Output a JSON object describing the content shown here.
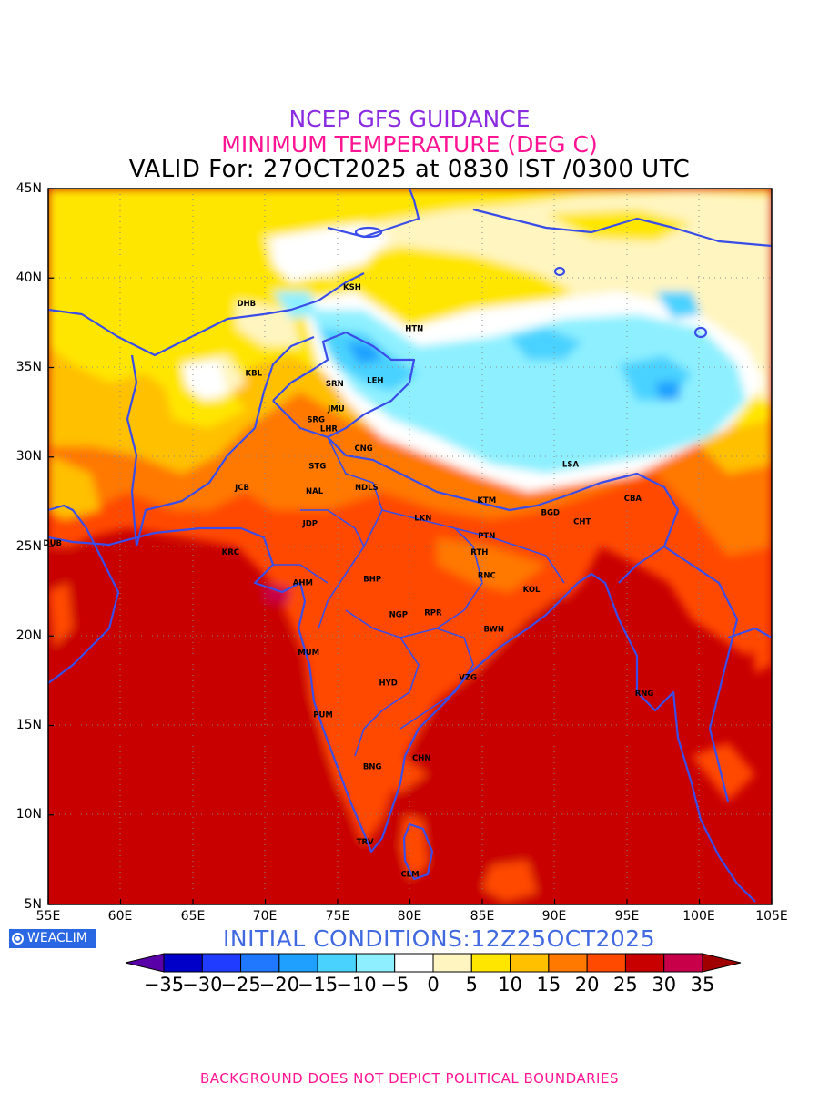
{
  "header": {
    "line1": "NCEP GFS GUIDANCE",
    "line2": "MINIMUM TEMPERATURE (DEG C)",
    "line3": "VALID For: 27OCT2025 at 0830 IST /0300 UTC",
    "line1_color": "#8a2be2",
    "line2_color": "#ff1493"
  },
  "map": {
    "lat_labels": [
      "45N",
      "40N",
      "35N",
      "30N",
      "25N",
      "20N",
      "15N",
      "10N",
      "5N"
    ],
    "lon_labels": [
      "55E",
      "60E",
      "65E",
      "70E",
      "75E",
      "80E",
      "85E",
      "90E",
      "95E",
      "100E",
      "105E"
    ],
    "boundary_color": "#3a4de8",
    "cities": [
      {
        "name": "KSH",
        "lon": 76.0,
        "lat": 39.5
      },
      {
        "name": "DHB",
        "lon": 68.7,
        "lat": 38.6
      },
      {
        "name": "HTN",
        "lon": 80.3,
        "lat": 37.2
      },
      {
        "name": "KBL",
        "lon": 69.2,
        "lat": 34.7
      },
      {
        "name": "SRN",
        "lon": 74.8,
        "lat": 34.1
      },
      {
        "name": "LEH",
        "lon": 77.6,
        "lat": 34.3
      },
      {
        "name": "JMU",
        "lon": 74.9,
        "lat": 32.7
      },
      {
        "name": "SRG",
        "lon": 73.5,
        "lat": 32.1
      },
      {
        "name": "LHR",
        "lon": 74.4,
        "lat": 31.6
      },
      {
        "name": "CNG",
        "lon": 76.8,
        "lat": 30.5
      },
      {
        "name": "LSA",
        "lon": 91.1,
        "lat": 29.6
      },
      {
        "name": "STG",
        "lon": 73.6,
        "lat": 29.5
      },
      {
        "name": "JCB",
        "lon": 68.4,
        "lat": 28.3
      },
      {
        "name": "NAL",
        "lon": 73.4,
        "lat": 28.1
      },
      {
        "name": "NDLS",
        "lon": 77.0,
        "lat": 28.3
      },
      {
        "name": "KTM",
        "lon": 85.3,
        "lat": 27.6
      },
      {
        "name": "CBA",
        "lon": 95.4,
        "lat": 27.7
      },
      {
        "name": "BGD",
        "lon": 89.7,
        "lat": 26.9
      },
      {
        "name": "LKN",
        "lon": 80.9,
        "lat": 26.6
      },
      {
        "name": "JDP",
        "lon": 73.1,
        "lat": 26.3
      },
      {
        "name": "CHT",
        "lon": 91.9,
        "lat": 26.4
      },
      {
        "name": "PTN",
        "lon": 85.3,
        "lat": 25.6
      },
      {
        "name": "DUB",
        "lon": 55.3,
        "lat": 25.2
      },
      {
        "name": "KRC",
        "lon": 67.6,
        "lat": 24.7
      },
      {
        "name": "RTH",
        "lon": 84.8,
        "lat": 24.7
      },
      {
        "name": "AHM",
        "lon": 72.6,
        "lat": 23.0
      },
      {
        "name": "BHP",
        "lon": 77.4,
        "lat": 23.2
      },
      {
        "name": "RNC",
        "lon": 85.3,
        "lat": 23.4
      },
      {
        "name": "KOL",
        "lon": 88.4,
        "lat": 22.6
      },
      {
        "name": "RPR",
        "lon": 81.6,
        "lat": 21.3
      },
      {
        "name": "NGP",
        "lon": 79.2,
        "lat": 21.2
      },
      {
        "name": "BWN",
        "lon": 85.8,
        "lat": 20.4
      },
      {
        "name": "MUM",
        "lon": 73.0,
        "lat": 19.1
      },
      {
        "name": "HYD",
        "lon": 78.5,
        "lat": 17.4
      },
      {
        "name": "VZG",
        "lon": 84.0,
        "lat": 17.7
      },
      {
        "name": "RNG",
        "lon": 96.2,
        "lat": 16.8
      },
      {
        "name": "PUM",
        "lon": 74.0,
        "lat": 15.6
      },
      {
        "name": "CHN",
        "lon": 80.8,
        "lat": 13.2
      },
      {
        "name": "BNG",
        "lon": 77.4,
        "lat": 12.7
      },
      {
        "name": "TRV",
        "lon": 76.9,
        "lat": 8.5
      },
      {
        "name": "CLM",
        "lon": 80.0,
        "lat": 6.7
      }
    ]
  },
  "badge": {
    "label": "WEACLIM"
  },
  "initial_conditions": "INITIAL  CONDITIONS:12Z25OCT2025",
  "colorbar": {
    "labels": [
      "-35",
      "-30",
      "-25",
      "-20",
      "-15",
      "-10",
      "-5",
      "0",
      "5",
      "10",
      "15",
      "20",
      "25",
      "30",
      "35"
    ],
    "colors": [
      "#5a00a8",
      "#0000c8",
      "#1f3cff",
      "#1f78ff",
      "#1fa0ff",
      "#4ad2ff",
      "#8ef0ff",
      "#ffffff",
      "#fff5c0",
      "#ffe600",
      "#ffc000",
      "#ff7800",
      "#ff4a00",
      "#c80000",
      "#c8004a",
      "#a00000"
    ]
  },
  "footer": "BACKGROUND DOES NOT DEPICT POLITICAL BOUNDARIES"
}
